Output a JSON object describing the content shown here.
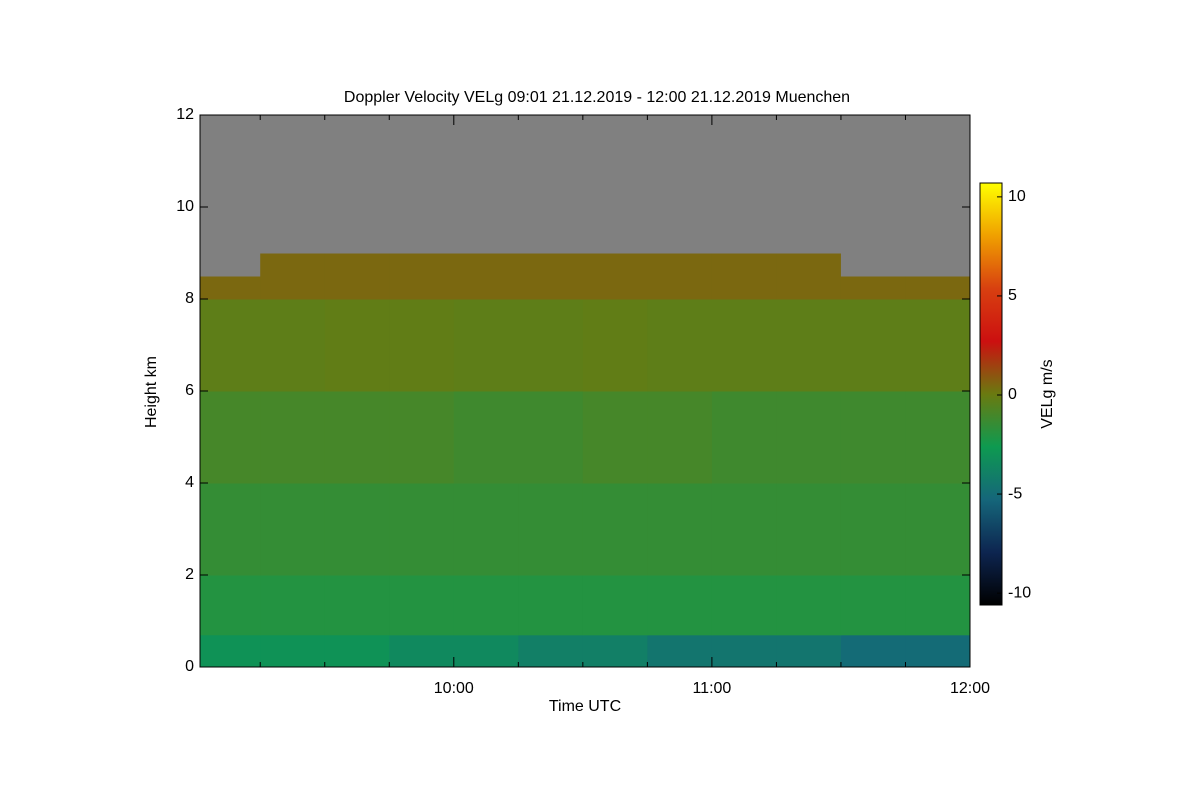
{
  "chart_data": {
    "type": "heatmap",
    "title": "Doppler Velocity VELg   09:01 21.12.2019 - 12:00 21.12.2019 Muenchen",
    "x_label": "Time UTC",
    "y_label": "Height km",
    "colorbar_label": "VELg m/s",
    "xlim": [
      9.0167,
      12
    ],
    "ylim": [
      0,
      12
    ],
    "xticks": [
      {
        "value": 10,
        "label": "10:00"
      },
      {
        "value": 11,
        "label": "11:00"
      },
      {
        "value": 12,
        "label": "12:00"
      }
    ],
    "xminorticks": [
      9.25,
      9.5,
      9.75,
      10.25,
      10.5,
      10.75,
      11.25,
      11.5,
      11.75
    ],
    "yticks": [
      0,
      2,
      4,
      6,
      8,
      10,
      12
    ],
    "zlim": [
      -10.6,
      10.7
    ],
    "zticks": [
      -10,
      -5,
      0,
      5,
      10
    ],
    "colorscale": [
      "#000000",
      "#0d2550",
      "#15667a",
      "#0e9a50",
      "#6a7a10",
      "#cc1010",
      "#d84010",
      "#f0a000",
      "#ffff00"
    ],
    "nan_color": "#808080",
    "x_edges": [
      9.0167,
      9.25,
      9.5,
      9.75,
      10,
      10.25,
      10.5,
      10.75,
      11,
      11.25,
      11.5,
      11.75,
      12
    ],
    "y_edges": [
      0,
      0.7,
      2,
      4,
      6,
      8,
      8.5,
      9,
      12
    ],
    "z": [
      [
        -3,
        -3,
        -3,
        -3.5,
        -3.5,
        -4,
        -4,
        -4.5,
        -4.5,
        -4.5,
        -5,
        -5
      ],
      [
        -2,
        -2,
        -2,
        -2,
        -2,
        -2,
        -2,
        -2,
        -2,
        -2,
        -2,
        -2
      ],
      [
        -1.5,
        -1.5,
        -1.5,
        -1.5,
        -1.5,
        -1.5,
        -1.5,
        -1.5,
        -1.5,
        -1.5,
        -1.5,
        -1.5
      ],
      [
        -1,
        -1,
        -1,
        -1,
        -1.2,
        -1.2,
        -1,
        -1,
        -1.2,
        -1.2,
        -1.2,
        -1.2
      ],
      [
        -0.3,
        -0.3,
        -0.2,
        -0.2,
        -0.3,
        -0.3,
        -0.2,
        -0.3,
        -0.3,
        -0.3,
        -0.3,
        -0.3
      ],
      [
        0.5,
        0.5,
        0.5,
        0.5,
        0.5,
        0.5,
        0.5,
        0.5,
        0.5,
        0.5,
        0.5,
        0.5
      ],
      [
        null,
        0.5,
        0.5,
        0.5,
        0.5,
        0.5,
        0.5,
        0.5,
        0.5,
        0.5,
        null,
        null
      ],
      [
        null,
        null,
        null,
        null,
        null,
        null,
        null,
        null,
        null,
        null,
        null,
        null
      ]
    ]
  }
}
